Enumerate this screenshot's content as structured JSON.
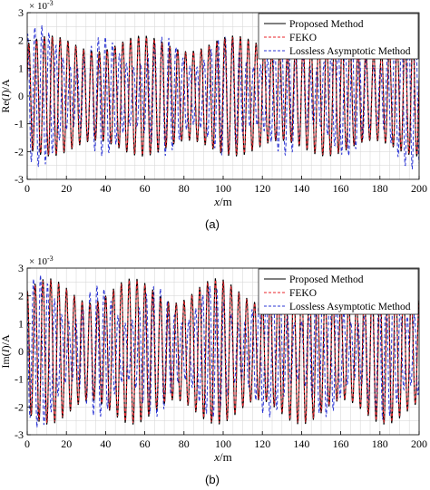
{
  "chart_data": [
    {
      "type": "line",
      "caption": "(a)",
      "ylabel_prefix": "Re(",
      "ylabel_var": "I",
      "ylabel_suffix": ")/A",
      "xlabel_var": "x",
      "xlabel_unit": "/m",
      "exponent_base": "× 10",
      "exponent_power": "-3",
      "xlim": [
        0,
        200
      ],
      "ylim": [
        -3,
        3
      ],
      "x_ticks": [
        0,
        20,
        40,
        60,
        80,
        100,
        120,
        140,
        160,
        180,
        200
      ],
      "y_ticks": [
        -3,
        -2,
        -1,
        0,
        1,
        2,
        3
      ],
      "grid": true,
      "legend_position": "top-right",
      "series": [
        {
          "name": "Proposed Method",
          "color": "#000000",
          "dash": "solid",
          "amplitude": 1.9,
          "period": 4.0,
          "phase": 0.3,
          "mod_amp": 0.15,
          "mod_period": 47
        },
        {
          "name": "FEKO",
          "color": "#e8232a",
          "dash": "dashed",
          "amplitude": 1.85,
          "period": 4.0,
          "phase": 0.3,
          "mod_amp": 0.15,
          "mod_period": 47
        },
        {
          "name": "Lossless Asymptotic Method",
          "color": "#2b35d4",
          "dash": "dashed",
          "amplitude": 1.6,
          "period": 3.6,
          "phase": 1.1,
          "mod_amp": 0.35,
          "mod_period": 31,
          "edge_boost": 1.1
        }
      ]
    },
    {
      "type": "line",
      "caption": "(b)",
      "ylabel_prefix": "Im(",
      "ylabel_var": "I",
      "ylabel_suffix": ")/A",
      "xlabel_var": "x",
      "xlabel_unit": "/m",
      "exponent_base": "× 10",
      "exponent_power": "-3",
      "xlim": [
        0,
        200
      ],
      "ylim": [
        -3,
        3
      ],
      "x_ticks": [
        0,
        20,
        40,
        60,
        80,
        100,
        120,
        140,
        160,
        180,
        200
      ],
      "y_ticks": [
        -3,
        -2,
        -1,
        0,
        1,
        2,
        3
      ],
      "grid": true,
      "legend_position": "top-right",
      "series": [
        {
          "name": "Proposed Method",
          "color": "#000000",
          "dash": "solid",
          "amplitude": 2.2,
          "period": 4.0,
          "phase": 1.5,
          "mod_amp": 0.2,
          "mod_period": 43
        },
        {
          "name": "FEKO",
          "color": "#e8232a",
          "dash": "dashed",
          "amplitude": 2.15,
          "period": 4.0,
          "phase": 1.5,
          "mod_amp": 0.2,
          "mod_period": 43
        },
        {
          "name": "Lossless Asymptotic Method",
          "color": "#2b35d4",
          "dash": "dashed",
          "amplitude": 1.7,
          "period": 3.6,
          "phase": 2.3,
          "mod_amp": 0.4,
          "mod_period": 29,
          "edge_boost": 0.9
        }
      ]
    }
  ]
}
